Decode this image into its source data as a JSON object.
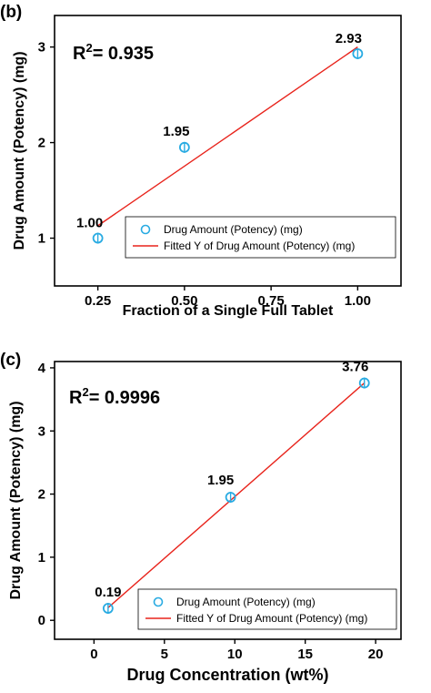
{
  "chart_data": [
    {
      "type": "scatter",
      "panel_label": "(b)",
      "xlabel": "Fraction of a Single Full Tablet",
      "ylabel": "Drug Amount (Potency) (mg)",
      "xlim": [
        0.125,
        1.125
      ],
      "ylim": [
        0.5,
        3.33
      ],
      "x_ticks": [
        "0.25",
        "0.50",
        "0.75",
        "1.00"
      ],
      "y_ticks": [
        "1",
        "2",
        "3"
      ],
      "annotation": {
        "prefix": "R",
        "sup": "2",
        "suffix": "= 0.935"
      },
      "legend": {
        "placement": "bottom-right",
        "entries": [
          "Drug Amount (Potency) (mg)",
          "Fitted Y of Drug Amount (Potency) (mg)"
        ]
      },
      "series": [
        {
          "name": "Drug Amount (Potency) (mg)",
          "marker": "open-circle",
          "color": "#29ABE2",
          "x": [
            0.25,
            0.5,
            1.0
          ],
          "y": [
            1.0,
            1.95,
            2.93
          ],
          "labels": [
            "1.00",
            "1.95",
            "2.93"
          ]
        },
        {
          "name": "Fitted Y of Drug Amount (Potency) (mg)",
          "line": true,
          "color": "#E8231B",
          "x": [
            0.25,
            1.0
          ],
          "y": [
            1.13,
            3.0
          ]
        }
      ]
    },
    {
      "type": "scatter",
      "panel_label": "(c)",
      "xlabel": "Drug Concentration (wt%)",
      "ylabel": "Drug Amount (Potency) (mg)",
      "xlim": [
        -2.8,
        21.8
      ],
      "ylim": [
        -0.3,
        4.1
      ],
      "x_ticks": [
        "0",
        "5",
        "10",
        "15",
        "20"
      ],
      "y_ticks": [
        "0",
        "1",
        "2",
        "3",
        "4"
      ],
      "annotation": {
        "prefix": "R",
        "sup": "2",
        "suffix": "= 0.9996"
      },
      "legend": {
        "placement": "bottom-right",
        "entries": [
          "Drug Amount (Potency) (mg)",
          "Fitted Y of Drug Amount (Potency) (mg)"
        ]
      },
      "series": [
        {
          "name": "Drug Amount (Potency) (mg)",
          "marker": "open-circle",
          "color": "#29ABE2",
          "x": [
            1.0,
            9.7,
            19.2
          ],
          "y": [
            0.19,
            1.95,
            3.76
          ],
          "labels": [
            "0.19",
            "1.95",
            "3.76"
          ]
        },
        {
          "name": "Fitted Y of Drug Amount (Potency) (mg)",
          "line": true,
          "color": "#E8231B",
          "x": [
            1.0,
            19.2
          ],
          "y": [
            0.2,
            3.76
          ]
        }
      ]
    }
  ]
}
